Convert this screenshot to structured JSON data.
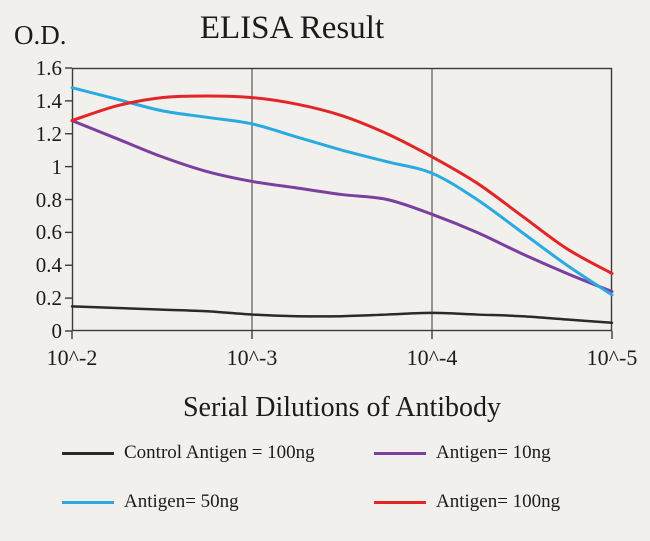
{
  "chart_data": {
    "type": "line",
    "title": "ELISA Result",
    "ylabel": "O.D.",
    "xlabel": "Serial Dilutions of Antibody",
    "x_tick_labels": [
      "10^-2",
      "10^-3",
      "10^-4",
      "10^-5"
    ],
    "y_ticks": [
      0,
      0.2,
      0.4,
      0.6,
      0.8,
      1,
      1.2,
      1.4,
      1.6
    ],
    "ylim": [
      0,
      1.6
    ],
    "grid": "vertical",
    "legend_position": "bottom",
    "x": [
      0,
      0.25,
      0.5,
      0.75,
      1,
      1.25,
      1.5,
      1.75,
      2,
      2.25,
      2.5,
      2.75,
      3
    ],
    "series": [
      {
        "name": "Control Antigen = 100ng",
        "color": "#2a2a2a",
        "values": [
          0.15,
          0.14,
          0.13,
          0.12,
          0.1,
          0.09,
          0.09,
          0.1,
          0.11,
          0.1,
          0.09,
          0.07,
          0.05
        ]
      },
      {
        "name": "Antigen= 10ng",
        "color": "#7b3fa0",
        "values": [
          1.28,
          1.17,
          1.06,
          0.97,
          0.91,
          0.87,
          0.83,
          0.8,
          0.71,
          0.6,
          0.47,
          0.35,
          0.24
        ]
      },
      {
        "name": "Antigen= 50ng",
        "color": "#29aae1",
        "values": [
          1.48,
          1.41,
          1.34,
          1.3,
          1.26,
          1.18,
          1.1,
          1.03,
          0.96,
          0.8,
          0.6,
          0.4,
          0.22
        ]
      },
      {
        "name": "Antigen= 100ng",
        "color": "#e42528",
        "values": [
          1.28,
          1.37,
          1.42,
          1.43,
          1.42,
          1.38,
          1.31,
          1.2,
          1.06,
          0.9,
          0.7,
          0.5,
          0.35
        ]
      }
    ],
    "axis_color": "#3a3a3a"
  }
}
